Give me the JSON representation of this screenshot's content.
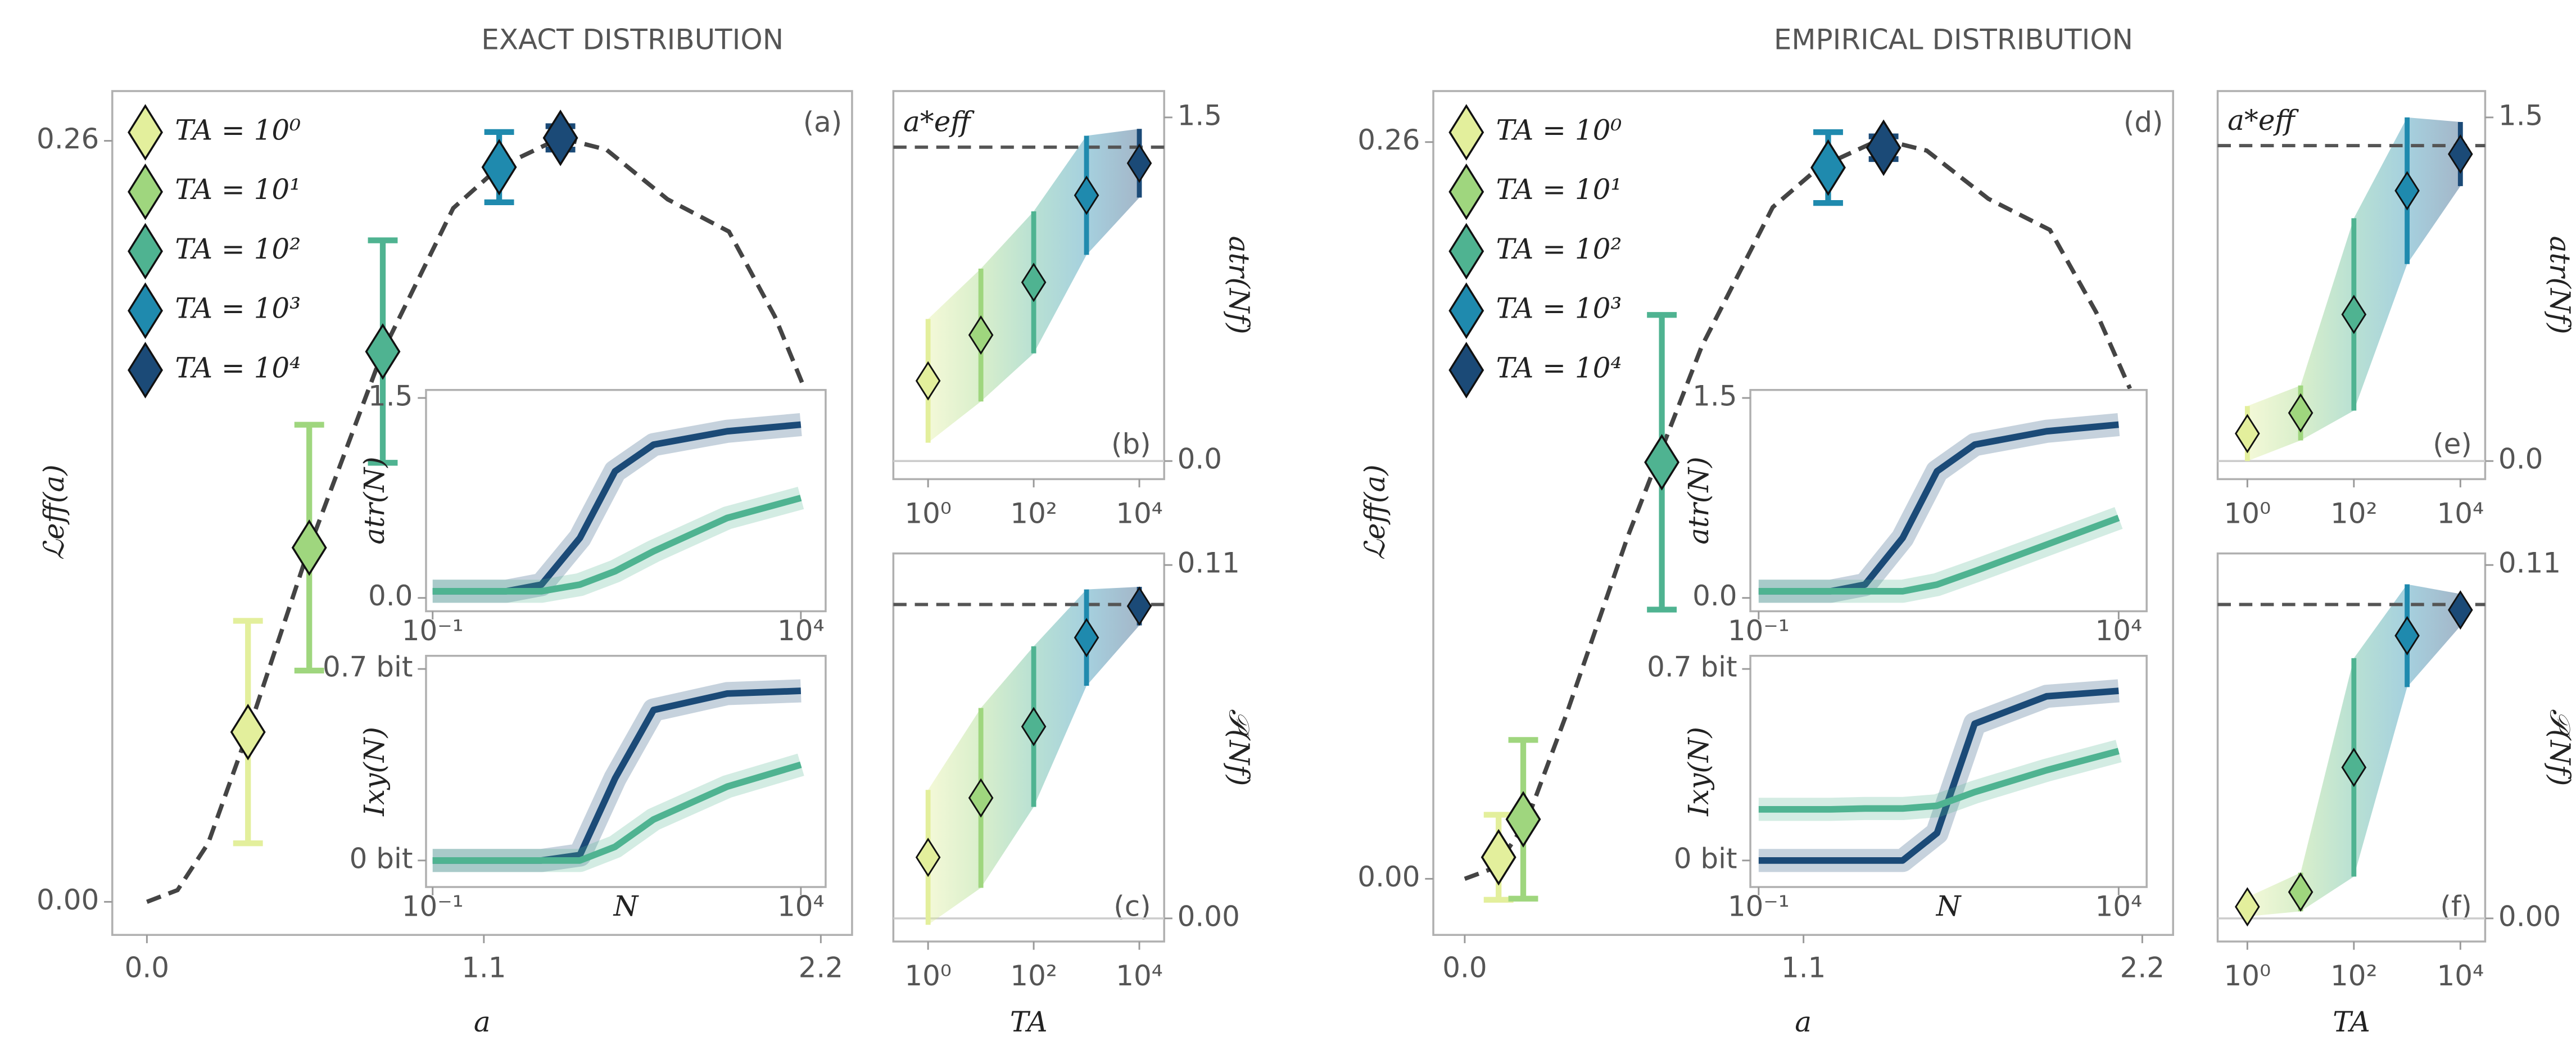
{
  "chart_data": [
    {
      "type": "scatter",
      "title": "EXACT DISTRIBUTION",
      "panel_label": "(a)",
      "xlabel": "a",
      "ylabel": "ℒeff(a)",
      "legend": "upper left",
      "xlim": [
        -0.113,
        2.302
      ],
      "ylim": [
        -0.0113,
        0.277
      ],
      "xticks": [
        {
          "value": 0,
          "label": "0.0"
        },
        1.1,
        2.2
      ],
      "yticks": [
        {
          "value": 0,
          "label": "0.00"
        },
        0.26
      ],
      "curve": {
        "color": "#444444",
        "x": [
          0,
          0.1,
          0.2,
          0.33,
          0.53,
          0.77,
          1.0,
          1.15,
          1.35,
          1.5,
          1.7,
          1.9,
          2.05,
          2.16
        ],
        "values": [
          0,
          0.004,
          0.02,
          0.058,
          0.121,
          0.188,
          0.237,
          0.251,
          0.261,
          0.257,
          0.24,
          0.229,
          0.2,
          0.172
        ]
      },
      "series": [
        {
          "name": "TA = 10⁰",
          "color": "#e3ef9c",
          "x": [
            0.33
          ],
          "values": [
            0.058
          ],
          "errors": [
            0.038
          ]
        },
        {
          "name": "TA = 10¹",
          "color": "#9fd67e",
          "x": [
            0.53
          ],
          "values": [
            0.121
          ],
          "errors": [
            0.042
          ]
        },
        {
          "name": "TA = 10²",
          "color": "#4fb391",
          "x": [
            0.77
          ],
          "values": [
            0.188
          ],
          "errors": [
            0.038
          ]
        },
        {
          "name": "TA = 10³",
          "color": "#1f8aae",
          "x": [
            1.15
          ],
          "values": [
            0.251
          ],
          "errors": [
            0.012
          ]
        },
        {
          "name": "TA = 10⁴",
          "color": "#1b4a77",
          "x": [
            1.35
          ],
          "values": [
            0.261
          ],
          "errors": [
            0.004
          ]
        }
      ]
    },
    {
      "type": "line",
      "ylabel": "atr(N)",
      "xscale": "log",
      "xlim": [
        0.0813,
        21700
      ],
      "ylim": [
        -0.1,
        1.56
      ],
      "xticks": [
        {
          "value": 0.1,
          "label": "10⁻¹"
        },
        {
          "value": 10000,
          "label": "10⁴"
        }
      ],
      "yticks": [
        {
          "value": 0,
          "label": "0.0"
        },
        1.5
      ],
      "x": [
        0.1,
        1,
        3,
        10,
        30,
        100,
        1000,
        10000
      ],
      "series": [
        {
          "color": "#1b4a77",
          "values": [
            0.05,
            0.05,
            0.1,
            0.45,
            0.95,
            1.15,
            1.25,
            1.3
          ]
        },
        {
          "color": "#4fb391",
          "values": [
            0.05,
            0.05,
            0.05,
            0.1,
            0.2,
            0.35,
            0.6,
            0.75
          ]
        }
      ]
    },
    {
      "type": "line",
      "ylabel": "Ixy(N)",
      "xlabel": "N",
      "xscale": "log",
      "xlim": [
        0.0813,
        21700
      ],
      "ylim": [
        -0.097,
        0.748
      ],
      "xticks": [
        {
          "value": 0.1,
          "label": "10⁻¹"
        },
        {
          "value": 10000,
          "label": "10⁴"
        }
      ],
      "yticks": [
        {
          "value": 0,
          "label": "0 bit"
        },
        {
          "value": 0.7,
          "label": "0.7 bit"
        }
      ],
      "x": [
        0.1,
        1,
        3,
        10,
        30,
        100,
        1000,
        10000
      ],
      "series": [
        {
          "color": "#1b4a77",
          "values": [
            0,
            0,
            0,
            0.02,
            0.3,
            0.55,
            0.61,
            0.62
          ]
        },
        {
          "color": "#4fb391",
          "values": [
            0,
            0,
            0,
            0,
            0.05,
            0.15,
            0.27,
            0.35
          ]
        }
      ]
    },
    {
      "type": "errorbar",
      "panel_label": "(b)",
      "ylabel": "atr(Nf)",
      "yaxis": "right",
      "xscale": "log",
      "xlim": [
        0.22,
        29500
      ],
      "ylim": [
        -0.079,
        1.615
      ],
      "xticks": [
        {
          "value": 1,
          "label": "10⁰"
        },
        {
          "value": 100,
          "label": "10²"
        },
        {
          "value": 10000,
          "label": "10⁴"
        }
      ],
      "yticks": [
        {
          "value": 0,
          "label": "0.0"
        },
        1.5
      ],
      "x": [
        1,
        10,
        100,
        1000,
        10000
      ],
      "colors": [
        "#e3ef9c",
        "#9fd67e",
        "#4fb391",
        "#1f8aae",
        "#1b4a77"
      ],
      "values": [
        0.35,
        0.55,
        0.78,
        1.16,
        1.3
      ],
      "errors": [
        0.27,
        0.29,
        0.31,
        0.26,
        0.15
      ],
      "reference": 1.37,
      "reference_label": "a*eff",
      "zero_line": true
    },
    {
      "type": "errorbar",
      "panel_label": "(c)",
      "ylabel": "𝒫(Nf)",
      "xlabel": "TA",
      "yaxis": "right",
      "xscale": "log",
      "xlim": [
        0.22,
        29500
      ],
      "ylim": [
        -0.0072,
        0.1136
      ],
      "xticks": [
        {
          "value": 1,
          "label": "10⁰"
        },
        {
          "value": 100,
          "label": "10²"
        },
        {
          "value": 10000,
          "label": "10⁴"
        }
      ],
      "yticks": [
        {
          "value": 0,
          "label": "0.00"
        },
        0.11
      ],
      "x": [
        1,
        10,
        100,
        1000,
        10000
      ],
      "colors": [
        "#e3ef9c",
        "#9fd67e",
        "#4fb391",
        "#1f8aae",
        "#1b4a77"
      ],
      "values": [
        0.019,
        0.0375,
        0.0597,
        0.0874,
        0.0972
      ],
      "errors": [
        0.021,
        0.028,
        0.025,
        0.015,
        0.006
      ],
      "reference": 0.0977,
      "zero_line": true
    },
    {
      "type": "scatter",
      "title": "EMPIRICAL DISTRIBUTION",
      "panel_label": "(d)",
      "xlabel": "a",
      "ylabel": "ℒeff(a)",
      "legend": "upper left",
      "xlim": [
        -0.102,
        2.3
      ],
      "ylim": [
        -0.0198,
        0.278
      ],
      "xticks": [
        {
          "value": 0,
          "label": "0.0"
        },
        1.1,
        2.2
      ],
      "yticks": [
        {
          "value": 0,
          "label": "0.00"
        },
        0.26
      ],
      "curve": {
        "color": "#444444",
        "x": [
          0,
          0.1,
          0.2,
          0.33,
          0.53,
          0.77,
          1.0,
          1.15,
          1.35,
          1.5,
          1.7,
          1.9,
          2.05,
          2.16
        ],
        "values": [
          0,
          0.004,
          0.02,
          0.058,
          0.121,
          0.188,
          0.237,
          0.251,
          0.261,
          0.257,
          0.24,
          0.229,
          0.2,
          0.173
        ]
      },
      "series": [
        {
          "name": "TA = 10⁰",
          "color": "#e3ef9c",
          "x": [
            0.11
          ],
          "values": [
            0.0076
          ],
          "errors": [
            0.015
          ]
        },
        {
          "name": "TA = 10¹",
          "color": "#9fd67e",
          "x": [
            0.19
          ],
          "values": [
            0.021
          ],
          "errors": [
            0.028
          ]
        },
        {
          "name": "TA = 10²",
          "color": "#4fb391",
          "x": [
            0.64
          ],
          "values": [
            0.147
          ],
          "errors": [
            0.052
          ]
        },
        {
          "name": "TA = 10³",
          "color": "#1f8aae",
          "x": [
            1.18
          ],
          "values": [
            0.251
          ],
          "errors": [
            0.0125
          ]
        },
        {
          "name": "TA = 10⁴",
          "color": "#1b4a77",
          "x": [
            1.36
          ],
          "values": [
            0.258
          ],
          "errors": [
            0.004
          ]
        }
      ]
    },
    {
      "type": "line",
      "ylabel": "atr(N)",
      "xscale": "log",
      "xlim": [
        0.0767,
        24500
      ],
      "ylim": [
        -0.1,
        1.56
      ],
      "xticks": [
        {
          "value": 0.1,
          "label": "10⁻¹"
        },
        {
          "value": 10000,
          "label": "10⁴"
        }
      ],
      "yticks": [
        {
          "value": 0,
          "label": "0.0"
        },
        1.5
      ],
      "x": [
        0.1,
        1,
        3,
        10,
        30,
        100,
        1000,
        10000
      ],
      "series": [
        {
          "color": "#1b4a77",
          "values": [
            0.05,
            0.05,
            0.1,
            0.45,
            0.95,
            1.15,
            1.25,
            1.3
          ]
        },
        {
          "color": "#4fb391",
          "values": [
            0.05,
            0.05,
            0.05,
            0.05,
            0.1,
            0.2,
            0.4,
            0.6
          ]
        }
      ]
    },
    {
      "type": "line",
      "ylabel": "Ixy(N)",
      "xlabel": "N",
      "xscale": "log",
      "xlim": [
        0.0767,
        24500
      ],
      "ylim": [
        -0.097,
        0.748
      ],
      "xticks": [
        {
          "value": 0.1,
          "label": "10⁻¹"
        },
        {
          "value": 10000,
          "label": "10⁴"
        }
      ],
      "yticks": [
        {
          "value": 0,
          "label": "0 bit"
        },
        {
          "value": 0.7,
          "label": "0.7 bit"
        }
      ],
      "x": [
        0.1,
        1,
        3,
        10,
        30,
        100,
        1000,
        10000
      ],
      "series": [
        {
          "color": "#1b4a77",
          "values": [
            0,
            0,
            0,
            0,
            0.1,
            0.5,
            0.6,
            0.62
          ]
        },
        {
          "color": "#4fb391",
          "values": [
            0.187,
            0.187,
            0.19,
            0.19,
            0.2,
            0.25,
            0.33,
            0.4
          ]
        }
      ]
    },
    {
      "type": "errorbar",
      "panel_label": "(e)",
      "ylabel": "atr(Nf)",
      "yaxis": "right",
      "xscale": "log",
      "xlim": [
        0.277,
        29200
      ],
      "ylim": [
        -0.079,
        1.615
      ],
      "xticks": [
        {
          "value": 1,
          "label": "10⁰"
        },
        {
          "value": 100,
          "label": "10²"
        },
        {
          "value": 10000,
          "label": "10⁴"
        }
      ],
      "yticks": [
        {
          "value": 0,
          "label": "0.0"
        },
        1.5
      ],
      "x": [
        1,
        10,
        100,
        1000,
        10000
      ],
      "colors": [
        "#e3ef9c",
        "#9fd67e",
        "#4fb391",
        "#1f8aae",
        "#1b4a77"
      ],
      "values": [
        0.12,
        0.21,
        0.64,
        1.18,
        1.34
      ],
      "errors": [
        0.12,
        0.12,
        0.42,
        0.32,
        0.14
      ],
      "reference": 1.377,
      "reference_label": "a*eff",
      "zero_line": true
    },
    {
      "type": "errorbar",
      "panel_label": "(f)",
      "ylabel": "𝒫(Nf)",
      "xlabel": "TA",
      "yaxis": "right",
      "xscale": "log",
      "xlim": [
        0.277,
        29200
      ],
      "ylim": [
        -0.0072,
        0.1136
      ],
      "xticks": [
        {
          "value": 1,
          "label": "10⁰"
        },
        {
          "value": 100,
          "label": "10²"
        },
        {
          "value": 10000,
          "label": "10⁴"
        }
      ],
      "yticks": [
        {
          "value": 0,
          "label": "0.00"
        },
        0.11
      ],
      "x": [
        1,
        10,
        100,
        1000,
        10000
      ],
      "colors": [
        "#e3ef9c",
        "#9fd67e",
        "#4fb391",
        "#1f8aae",
        "#1b4a77"
      ],
      "values": [
        0.0036,
        0.0082,
        0.047,
        0.088,
        0.096
      ],
      "errors": [
        0.003,
        0.006,
        0.034,
        0.016,
        0.005
      ],
      "reference": 0.0977,
      "zero_line": true
    }
  ]
}
